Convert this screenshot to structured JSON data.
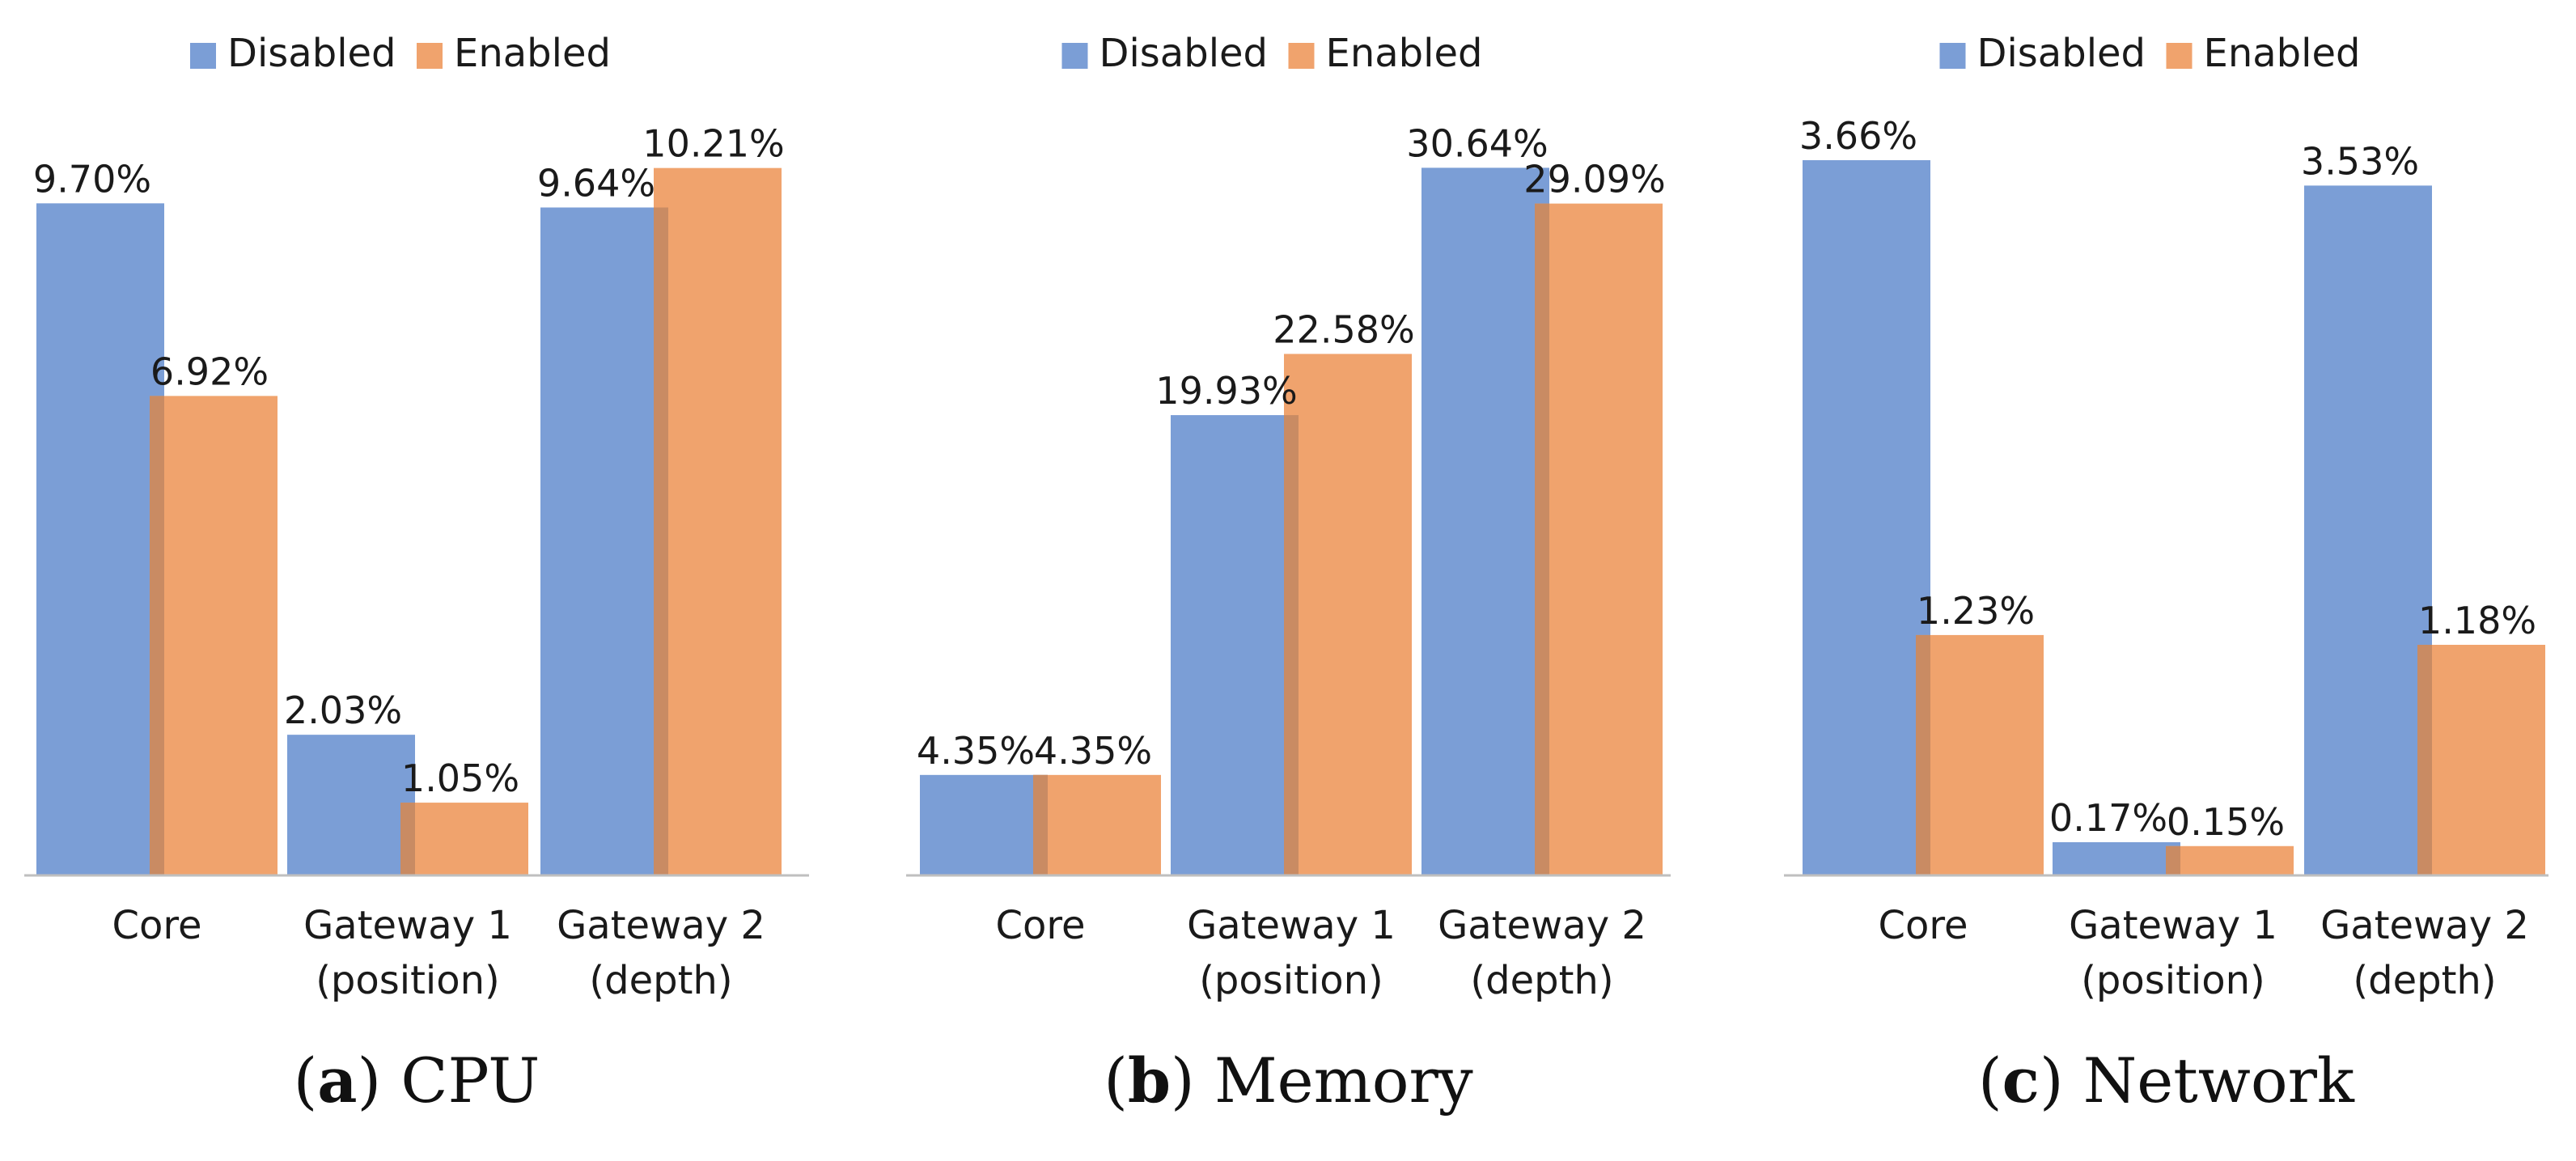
{
  "chart_data": [
    {
      "type": "bar",
      "panel": "a",
      "title": "CPU",
      "categories": [
        "Core",
        "Gateway 1 (position)",
        "Gateway 2 (depth)"
      ],
      "series": [
        {
          "name": "Disabled",
          "values": [
            9.7,
            2.03,
            9.64
          ],
          "labels": [
            "9.70%",
            "2.03%",
            "9.64%"
          ]
        },
        {
          "name": "Enabled",
          "values": [
            6.92,
            1.05,
            10.21
          ],
          "labels": [
            "6.92%",
            "1.05%",
            "10.21%"
          ]
        }
      ],
      "xlabel": "",
      "ylabel": "",
      "ylim": [
        0,
        11
      ],
      "grid": false,
      "legend": "top"
    },
    {
      "type": "bar",
      "panel": "b",
      "title": "Memory",
      "categories": [
        "Core",
        "Gateway 1 (position)",
        "Gateway 2 (depth)"
      ],
      "series": [
        {
          "name": "Disabled",
          "values": [
            4.35,
            19.93,
            30.64
          ],
          "labels": [
            "4.35%",
            "19.93%",
            "30.64%"
          ]
        },
        {
          "name": "Enabled",
          "values": [
            4.35,
            22.58,
            29.09
          ],
          "labels": [
            "4.35%",
            "22.58%",
            "29.09%"
          ]
        }
      ],
      "xlabel": "",
      "ylabel": "",
      "ylim": [
        0,
        33
      ],
      "grid": false,
      "legend": "top"
    },
    {
      "type": "bar",
      "panel": "c",
      "title": "Network",
      "categories": [
        "Core",
        "Gateway 1 (position)",
        "Gateway 2 (depth)"
      ],
      "series": [
        {
          "name": "Disabled",
          "values": [
            3.66,
            0.17,
            3.53
          ],
          "labels": [
            "3.66%",
            "0.17%",
            "3.53%"
          ]
        },
        {
          "name": "Enabled",
          "values": [
            1.23,
            0.15,
            1.18
          ],
          "labels": [
            "1.23%",
            "0.15%",
            "1.18%"
          ]
        }
      ],
      "xlabel": "",
      "ylabel": "",
      "ylim": [
        0,
        3.9
      ],
      "grid": false,
      "legend": "top"
    }
  ],
  "colors": {
    "Disabled": "#7b9ed6",
    "Enabled": "#f0a36d",
    "overlap": "#c98b63",
    "axis": "#bfbfbf"
  }
}
